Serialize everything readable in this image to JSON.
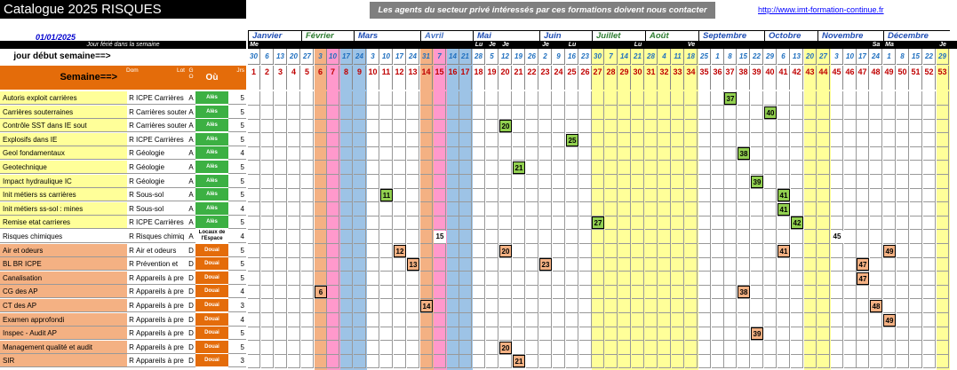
{
  "title": "Catalogue 2025 RISQUES",
  "banner": "Les agents du secteur privé intéressés par ces formations doivent nous contacter",
  "url": "http://www.imt-formation-continue.fr",
  "date": "01/01/2025",
  "ferie_label": "Jour férié dans la semaine",
  "jour_debut_label": "jour début semaine==>",
  "semaine_label": "Semaine==>",
  "col_headers": {
    "dom": "Dom",
    "lot": "Lot",
    "go": "G O",
    "ou": "Où",
    "jrs": "Jrs"
  },
  "months": [
    {
      "name": "Janvier",
      "start": 0,
      "span": 4,
      "color": "#1f4eb4"
    },
    {
      "name": "Février",
      "start": 4,
      "span": 4,
      "color": "#2e7d32"
    },
    {
      "name": "Mars",
      "start": 8,
      "span": 5,
      "color": "#1f4eb4"
    },
    {
      "name": "Avril",
      "start": 13,
      "span": 4,
      "color": "#4472c4"
    },
    {
      "name": "Mai",
      "start": 17,
      "span": 5,
      "color": "#1f4eb4"
    },
    {
      "name": "Juin",
      "start": 22,
      "span": 4,
      "color": "#1f4eb4"
    },
    {
      "name": "Juillet",
      "start": 26,
      "span": 4,
      "color": "#2e7d32"
    },
    {
      "name": "Août",
      "start": 30,
      "span": 4,
      "color": "#2e7d32"
    },
    {
      "name": "Septembre",
      "start": 34,
      "span": 5,
      "color": "#1f4eb4"
    },
    {
      "name": "Octobre",
      "start": 39,
      "span": 4,
      "color": "#1f4eb4"
    },
    {
      "name": "Novembre",
      "start": 43,
      "span": 5,
      "color": "#1f4eb4"
    },
    {
      "name": "Décembre",
      "start": 48,
      "span": 5,
      "color": "#1f4eb4"
    }
  ],
  "weekday_marks": [
    {
      "col": 0,
      "text": "Me"
    },
    {
      "col": 17,
      "text": "Lu"
    },
    {
      "col": 18,
      "text": "Je"
    },
    {
      "col": 19,
      "text": "Je"
    },
    {
      "col": 22,
      "text": "Je"
    },
    {
      "col": 24,
      "text": "Lu"
    },
    {
      "col": 29,
      "text": "Lu"
    },
    {
      "col": 33,
      "text": "Ve"
    },
    {
      "col": 47,
      "text": "Sa"
    },
    {
      "col": 48,
      "text": "Ma"
    },
    {
      "col": 52,
      "text": "Je"
    }
  ],
  "day_numbers": [
    "30",
    "6",
    "13",
    "20",
    "27",
    "3",
    "10",
    "17",
    "24",
    "3",
    "10",
    "17",
    "24",
    "31",
    "7",
    "14",
    "21",
    "28",
    "5",
    "12",
    "19",
    "26",
    "2",
    "9",
    "16",
    "23",
    "30",
    "7",
    "14",
    "21",
    "28",
    "4",
    "11",
    "18",
    "25",
    "1",
    "8",
    "15",
    "22",
    "29",
    "6",
    "13",
    "20",
    "27",
    "3",
    "10",
    "17",
    "24",
    "1",
    "8",
    "15",
    "22",
    "29"
  ],
  "week_numbers": [
    "1",
    "2",
    "3",
    "4",
    "5",
    "6",
    "7",
    "8",
    "9",
    "10",
    "11",
    "12",
    "13",
    "14",
    "15",
    "16",
    "17",
    "18",
    "19",
    "20",
    "21",
    "22",
    "23",
    "24",
    "25",
    "26",
    "27",
    "28",
    "29",
    "30",
    "31",
    "32",
    "33",
    "34",
    "35",
    "36",
    "37",
    "38",
    "39",
    "40",
    "41",
    "42",
    "43",
    "44",
    "45",
    "46",
    "47",
    "48",
    "49",
    "50",
    "51",
    "52",
    "53"
  ],
  "col_colors": {
    "5": "#f4b183",
    "6": "#ff99cc",
    "7": "#9dc3e6",
    "8": "#9dc3e6",
    "13": "#f4b183",
    "14": "#ff99cc",
    "15": "#9dc3e6",
    "16": "#9dc3e6",
    "26": "#ffff99",
    "27": "#ffff99",
    "28": "#ffff99",
    "29": "#ffff99",
    "30": "#ffff99",
    "31": "#ffff99",
    "32": "#ffff99",
    "33": "#ffff99",
    "42": "#ffff99",
    "43": "#ffff99",
    "52": "#ffff99"
  },
  "rows": [
    {
      "label": "Autoris exploit carrières",
      "dom": "R",
      "lot": "ICPE Carrières",
      "go": "A",
      "ou": "Alès",
      "jrs": "5",
      "ou_color": "#3cb043",
      "label_bg": "#ffff99",
      "marks": [
        {
          "week": "37",
          "color": "#92d050"
        }
      ]
    },
    {
      "label": "Carrières souterraines",
      "dom": "R",
      "lot": "Carrières souterr",
      "go": "A",
      "ou": "Alès",
      "jrs": "5",
      "ou_color": "#3cb043",
      "label_bg": "#ffff99",
      "marks": [
        {
          "week": "40",
          "color": "#92d050"
        }
      ]
    },
    {
      "label": "Contrôle SST dans IE sout",
      "dom": "R",
      "lot": "Carrières souterr",
      "go": "A",
      "ou": "Alès",
      "jrs": "5",
      "ou_color": "#3cb043",
      "label_bg": "#ffff99",
      "marks": [
        {
          "week": "20",
          "color": "#92d050"
        }
      ]
    },
    {
      "label": "Explosifs dans IE",
      "dom": "R",
      "lot": "ICPE Carrières",
      "go": "A",
      "ou": "Alès",
      "jrs": "5",
      "ou_color": "#3cb043",
      "label_bg": "#ffff99",
      "marks": [
        {
          "week": "25",
          "color": "#92d050"
        }
      ]
    },
    {
      "label": "Geol fondamentaux",
      "dom": "R",
      "lot": "Géologie",
      "go": "A",
      "ou": "Alès",
      "jrs": "4",
      "ou_color": "#3cb043",
      "label_bg": "#ffff99",
      "marks": [
        {
          "week": "38",
          "color": "#92d050"
        }
      ]
    },
    {
      "label": "Geotechnique",
      "dom": "R",
      "lot": "Géologie",
      "go": "A",
      "ou": "Alès",
      "jrs": "5",
      "ou_color": "#3cb043",
      "label_bg": "#ffff99",
      "marks": [
        {
          "week": "21",
          "color": "#92d050"
        }
      ]
    },
    {
      "label": "Impact hydraulique IC",
      "dom": "R",
      "lot": "Géologie",
      "go": "A",
      "ou": "Alès",
      "jrs": "5",
      "ou_color": "#3cb043",
      "label_bg": "#ffff99",
      "marks": [
        {
          "week": "39",
          "color": "#92d050"
        }
      ]
    },
    {
      "label": "Init métiers ss carrières",
      "dom": "R",
      "lot": "Sous-sol",
      "go": "A",
      "ou": "Alès",
      "jrs": "5",
      "ou_color": "#3cb043",
      "label_bg": "#ffff99",
      "marks": [
        {
          "week": "11",
          "color": "#92d050"
        },
        {
          "week": "41",
          "color": "#92d050"
        }
      ]
    },
    {
      "label": "Init  métiers ss-sol : mines",
      "dom": "R",
      "lot": "Sous-sol",
      "go": "A",
      "ou": "Alès",
      "jrs": "4",
      "ou_color": "#3cb043",
      "label_bg": "#ffff99",
      "marks": [
        {
          "week": "41",
          "color": "#92d050"
        }
      ]
    },
    {
      "label": "Remise etat carrieres",
      "dom": "R",
      "lot": "ICPE Carrières",
      "go": "A",
      "ou": "Alès",
      "jrs": "5",
      "ou_color": "#3cb043",
      "label_bg": "#ffff99",
      "marks": [
        {
          "week": "27",
          "color": "#92d050"
        },
        {
          "week": "42",
          "color": "#92d050"
        }
      ]
    },
    {
      "label": "Risques chimiques",
      "dom": "R",
      "lot": "Risques chimiq",
      "go": "A",
      "ou": "Locaux de l'Espace",
      "jrs": "4",
      "ou_color": "#ffffff",
      "label_bg": "#ffffff",
      "marks": [
        {
          "week": "15",
          "color": "#ffffff"
        },
        {
          "week": "45",
          "color": "#ffffff"
        }
      ]
    },
    {
      "label": "Air et odeurs",
      "dom": "R",
      "lot": "Air et odeurs",
      "go": "D",
      "ou": "Douai",
      "jrs": "5",
      "ou_color": "#e46c0a",
      "label_bg": "#f4b183",
      "marks": [
        {
          "week": "12",
          "color": "#f4b183"
        },
        {
          "week": "20",
          "color": "#f4b183"
        },
        {
          "week": "41",
          "color": "#f4b183"
        },
        {
          "week": "49",
          "color": "#f4b183"
        }
      ]
    },
    {
      "label": "BL BR ICPE",
      "dom": "R",
      "lot": "Prévention  et",
      "go": "D",
      "ou": "Douai",
      "jrs": "5",
      "ou_color": "#e46c0a",
      "label_bg": "#f4b183",
      "marks": [
        {
          "week": "13",
          "color": "#f4b183"
        },
        {
          "week": "23",
          "color": "#f4b183"
        },
        {
          "week": "47",
          "color": "#f4b183"
        }
      ]
    },
    {
      "label": "Canalisation",
      "dom": "R",
      "lot": "Appareils à pre",
      "go": "D",
      "ou": "Douai",
      "jrs": "5",
      "ou_color": "#e46c0a",
      "label_bg": "#f4b183",
      "marks": [
        {
          "week": "47",
          "color": "#f4b183"
        }
      ]
    },
    {
      "label": "CG des  AP",
      "dom": "R",
      "lot": "Appareils à pre",
      "go": "D",
      "ou": "Douai",
      "jrs": "4",
      "ou_color": "#e46c0a",
      "label_bg": "#f4b183",
      "marks": [
        {
          "week": "6",
          "color": "#f4b183"
        },
        {
          "week": "38",
          "color": "#f4b183"
        }
      ]
    },
    {
      "label": "CT des AP",
      "dom": "R",
      "lot": "Appareils à pre",
      "go": "D",
      "ou": "Douai",
      "jrs": "3",
      "ou_color": "#e46c0a",
      "label_bg": "#f4b183",
      "marks": [
        {
          "week": "14",
          "color": "#f4b183"
        },
        {
          "week": "48",
          "color": "#f4b183"
        }
      ]
    },
    {
      "label": "Examen approfondi",
      "dom": "R",
      "lot": "Appareils à pre",
      "go": "D",
      "ou": "Douai",
      "jrs": "4",
      "ou_color": "#e46c0a",
      "label_bg": "#f4b183",
      "marks": [
        {
          "week": "49",
          "color": "#f4b183"
        }
      ]
    },
    {
      "label": "Inspec - Audit AP",
      "dom": "R",
      "lot": "Appareils à pre",
      "go": "D",
      "ou": "Douai",
      "jrs": "5",
      "ou_color": "#e46c0a",
      "label_bg": "#f4b183",
      "marks": [
        {
          "week": "39",
          "color": "#f4b183"
        }
      ]
    },
    {
      "label": "Management qualité et audit",
      "dom": "R",
      "lot": "Appareils à pre",
      "go": "D",
      "ou": "Douai",
      "jrs": "5",
      "ou_color": "#e46c0a",
      "label_bg": "#f4b183",
      "marks": [
        {
          "week": "20",
          "color": "#f4b183"
        }
      ]
    },
    {
      "label": "SIR",
      "dom": "R",
      "lot": "Appareils à pre",
      "go": "D",
      "ou": "Douai",
      "jrs": "3",
      "ou_color": "#e46c0a",
      "label_bg": "#f4b183",
      "marks": [
        {
          "week": "21",
          "color": "#f4b183"
        }
      ]
    }
  ]
}
